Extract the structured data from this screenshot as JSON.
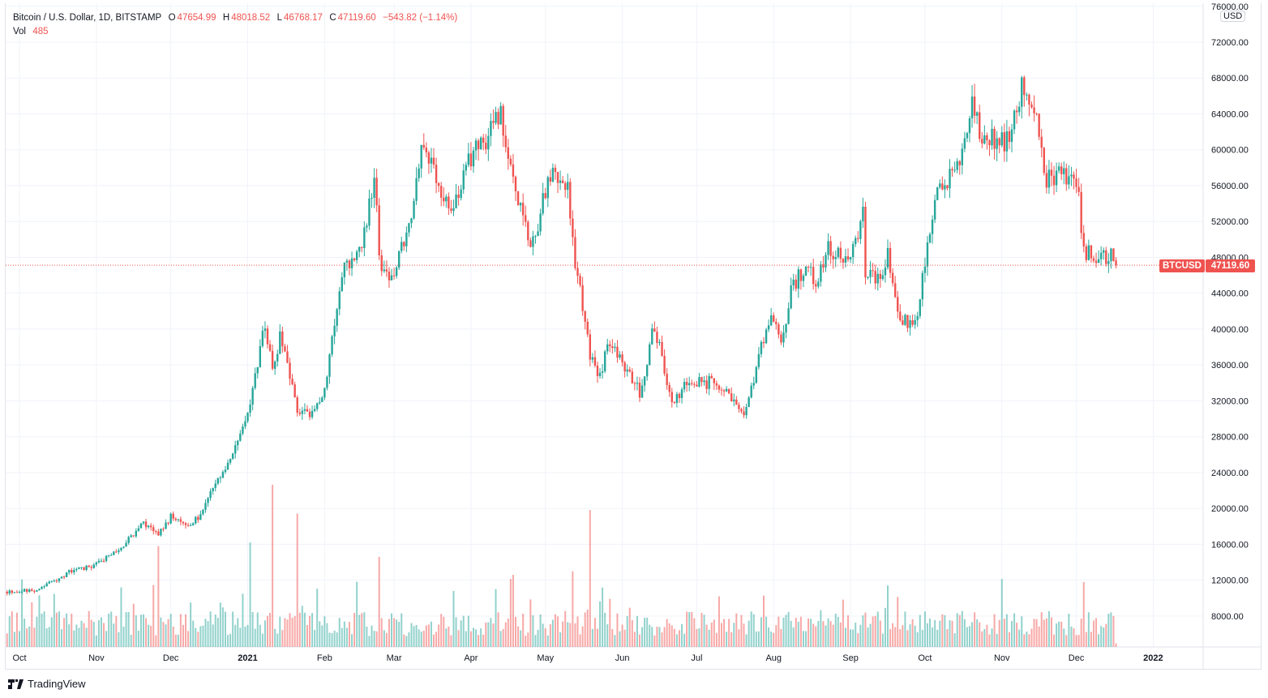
{
  "header": {
    "symbol_title": "Bitcoin / U.S. Dollar, 1D, BITSTAMP",
    "open_label": "O",
    "open": "47654.99",
    "high_label": "H",
    "high": "48018.52",
    "low_label": "L",
    "low": "46768.17",
    "close_label": "C",
    "close": "47119.60",
    "change": "−543.82 (−1.14%)",
    "vol_label": "Vol",
    "vol": "485"
  },
  "price_axis": {
    "currency": "USD",
    "last_symbol": "BTCUSD",
    "last_price": "47119.60"
  },
  "branding": {
    "name": "TradingView"
  },
  "colors": {
    "up": "#26a69a",
    "down": "#ef5350",
    "grid": "#f0f3fa"
  },
  "chart_data": {
    "type": "candlestick",
    "title": "Bitcoin / U.S. Dollar, 1D, BITSTAMP",
    "ylim": [
      0,
      76000
    ],
    "y_ticks": [
      "76000.00",
      "72000.00",
      "68000.00",
      "64000.00",
      "60000.00",
      "56000.00",
      "52000.00",
      "48000.00",
      "44000.00",
      "40000.00",
      "36000.00",
      "32000.00",
      "28000.00",
      "24000.00",
      "20000.00",
      "16000.00",
      "12000.00",
      "8000.00"
    ],
    "x_ticks": [
      {
        "label": "Oct",
        "date": "2020-10-01"
      },
      {
        "label": "Nov",
        "date": "2020-11-01"
      },
      {
        "label": "Dec",
        "date": "2020-12-01"
      },
      {
        "label": "2021",
        "date": "2021-01-01",
        "bold": true
      },
      {
        "label": "Feb",
        "date": "2021-02-01"
      },
      {
        "label": "Mar",
        "date": "2021-03-01"
      },
      {
        "label": "Apr",
        "date": "2021-04-01"
      },
      {
        "label": "May",
        "date": "2021-05-01"
      },
      {
        "label": "Jun",
        "date": "2021-06-01"
      },
      {
        "label": "Jul",
        "date": "2021-07-01"
      },
      {
        "label": "Aug",
        "date": "2021-08-01"
      },
      {
        "label": "Sep",
        "date": "2021-09-01"
      },
      {
        "label": "Oct",
        "date": "2021-10-01"
      },
      {
        "label": "Nov",
        "date": "2021-11-01"
      },
      {
        "label": "Dec",
        "date": "2021-12-01"
      },
      {
        "label": "2022",
        "date": "2022-01-01",
        "bold": true
      }
    ],
    "close_keypoints": [
      [
        "2020-09-26",
        10700
      ],
      [
        "2020-10-08",
        10900
      ],
      [
        "2020-10-21",
        12900
      ],
      [
        "2020-11-01",
        13800
      ],
      [
        "2020-11-10",
        15300
      ],
      [
        "2020-11-20",
        18500
      ],
      [
        "2020-11-26",
        17000
      ],
      [
        "2020-12-01",
        19000
      ],
      [
        "2020-12-10",
        18200
      ],
      [
        "2020-12-16",
        21000
      ],
      [
        "2020-12-20",
        23500
      ],
      [
        "2020-12-27",
        26500
      ],
      [
        "2021-01-02",
        32000
      ],
      [
        "2021-01-08",
        40500
      ],
      [
        "2021-01-11",
        35000
      ],
      [
        "2021-01-14",
        39000
      ],
      [
        "2021-01-21",
        31000
      ],
      [
        "2021-01-27",
        30500
      ],
      [
        "2021-02-01",
        33500
      ],
      [
        "2021-02-08",
        46500
      ],
      [
        "2021-02-12",
        47500
      ],
      [
        "2021-02-16",
        49000
      ],
      [
        "2021-02-21",
        57500
      ],
      [
        "2021-02-23",
        48000
      ],
      [
        "2021-02-28",
        45500
      ],
      [
        "2021-03-07",
        51000
      ],
      [
        "2021-03-13",
        61000
      ],
      [
        "2021-03-17",
        58000
      ],
      [
        "2021-03-24",
        53000
      ],
      [
        "2021-03-31",
        59000
      ],
      [
        "2021-04-13",
        63500
      ],
      [
        "2021-04-18",
        56000
      ],
      [
        "2021-04-25",
        49000
      ],
      [
        "2021-05-03",
        57000
      ],
      [
        "2021-05-10",
        56000
      ],
      [
        "2021-05-12",
        49500
      ],
      [
        "2021-05-19",
        37000
      ],
      [
        "2021-05-23",
        34500
      ],
      [
        "2021-05-26",
        39000
      ],
      [
        "2021-06-01",
        36500
      ],
      [
        "2021-06-08",
        33000
      ],
      [
        "2021-06-14",
        40500
      ],
      [
        "2021-06-21",
        31600
      ],
      [
        "2021-06-28",
        34500
      ],
      [
        "2021-07-06",
        34000
      ],
      [
        "2021-07-13",
        32800
      ],
      [
        "2021-07-20",
        29800
      ],
      [
        "2021-07-26",
        37000
      ],
      [
        "2021-07-31",
        41500
      ],
      [
        "2021-08-04",
        38000
      ],
      [
        "2021-08-08",
        44000
      ],
      [
        "2021-08-14",
        47500
      ],
      [
        "2021-08-18",
        45000
      ],
      [
        "2021-08-23",
        49500
      ],
      [
        "2021-08-31",
        47000
      ],
      [
        "2021-09-06",
        52500
      ],
      [
        "2021-09-07",
        46800
      ],
      [
        "2021-09-13",
        44900
      ],
      [
        "2021-09-16",
        48000
      ],
      [
        "2021-09-21",
        40600
      ],
      [
        "2021-09-28",
        41500
      ],
      [
        "2021-10-01",
        48000
      ],
      [
        "2021-10-06",
        55300
      ],
      [
        "2021-10-14",
        57500
      ],
      [
        "2021-10-20",
        66000
      ],
      [
        "2021-10-24",
        61000
      ],
      [
        "2021-10-28",
        61500
      ],
      [
        "2021-11-04",
        61000
      ],
      [
        "2021-11-09",
        67500
      ],
      [
        "2021-11-12",
        64500
      ],
      [
        "2021-11-15",
        63500
      ],
      [
        "2021-11-18",
        56800
      ],
      [
        "2021-11-23",
        57000
      ],
      [
        "2021-11-28",
        57200
      ],
      [
        "2021-12-01",
        56800
      ],
      [
        "2021-12-04",
        49000
      ],
      [
        "2021-12-10",
        47500
      ],
      [
        "2021-12-14",
        48400
      ],
      [
        "2021-12-17",
        47119.6
      ]
    ],
    "last_candle": {
      "open": 47654.99,
      "high": 48018.52,
      "low": 46768.17,
      "close": 47119.6,
      "volume": 485
    },
    "volume_spikes": [
      [
        "2021-01-11",
        22500
      ],
      [
        "2021-01-21",
        18500
      ],
      [
        "2021-05-19",
        19000
      ],
      [
        "2020-11-26",
        14000
      ],
      [
        "2021-01-02",
        14500
      ],
      [
        "2021-02-23",
        12500
      ],
      [
        "2021-12-04",
        9000
      ],
      [
        "2021-04-18",
        10000
      ],
      [
        "2021-05-12",
        10500
      ]
    ]
  }
}
